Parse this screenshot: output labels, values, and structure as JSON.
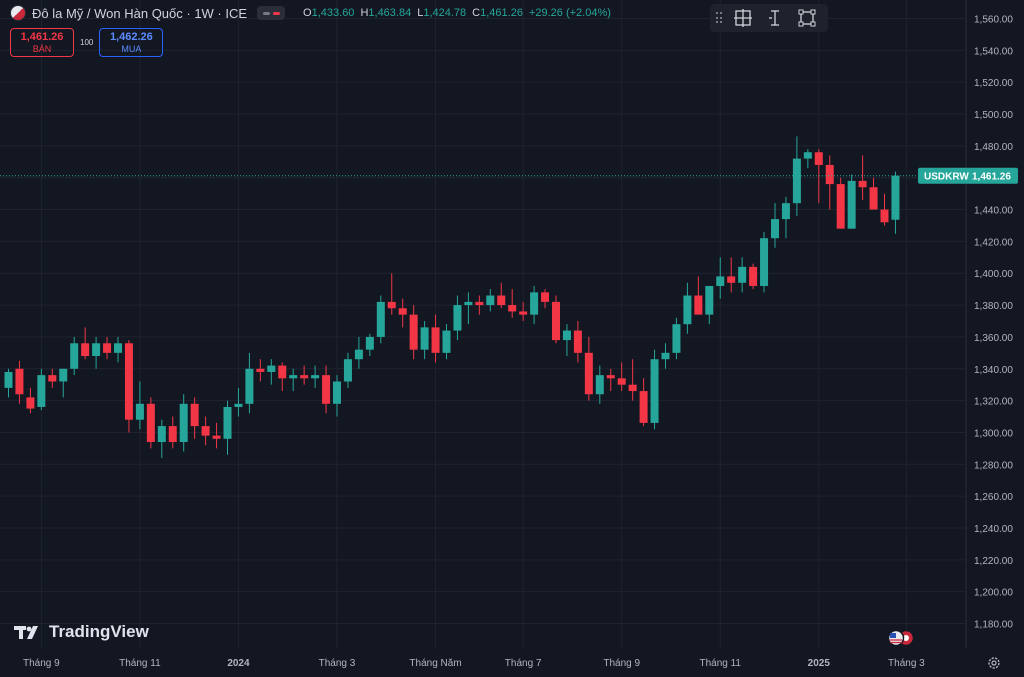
{
  "header": {
    "symbol_title": "Đô la Mỹ / Won Hàn Quốc · 1W · ICE",
    "ohlc": {
      "o_label": "O",
      "o_value": "1,433.60",
      "h_label": "H",
      "h_value": "1,463.84",
      "l_label": "L",
      "l_value": "1,424.78",
      "c_label": "C",
      "c_value": "1,461.26",
      "change": "+29.26 (+2.04%)"
    }
  },
  "trade": {
    "sell_price": "1,461.26",
    "sell_label": "BÁN",
    "spread": "100",
    "buy_price": "1,462.26",
    "buy_label": "MUA"
  },
  "logo_text": "TradingView",
  "colors": {
    "up": "#26a69a",
    "down": "#f23645",
    "background": "#131722",
    "grid": "#1f2330",
    "axis_text": "#b2b5be"
  },
  "icons": [
    "grip-icon",
    "crosshair-box-icon",
    "text-cursor-icon",
    "frame-icon",
    "settings-icon",
    "us-flag-icon",
    "kr-flag-icon"
  ],
  "chart_data": {
    "type": "candlestick",
    "symbol": "USDKRW",
    "last_price": 1461.26,
    "ylim": [
      1160,
      1570
    ],
    "yticks": [
      1180,
      1200,
      1220,
      1240,
      1260,
      1280,
      1300,
      1320,
      1340,
      1360,
      1380,
      1400,
      1420,
      1440,
      1460,
      1480,
      1500,
      1520,
      1540,
      1560
    ],
    "ytick_labels": [
      "1,180.00",
      "1,200.00",
      "1,220.00",
      "1,240.00",
      "1,260.00",
      "1,280.00",
      "1,300.00",
      "1,320.00",
      "1,340.00",
      "1,360.00",
      "1,380.00",
      "1,400.00",
      "1,420.00",
      "1,440.00",
      "1,460.00",
      "1,480.00",
      "1,500.00",
      "1,520.00",
      "1,540.00",
      "1,560.00"
    ],
    "xtick_labels": [
      {
        "i": 3,
        "label": "Tháng 9"
      },
      {
        "i": 12,
        "label": "Tháng 11"
      },
      {
        "i": 21,
        "label": "2024"
      },
      {
        "i": 30,
        "label": "Tháng 3"
      },
      {
        "i": 39,
        "label": "Tháng Năm"
      },
      {
        "i": 47,
        "label": "Tháng 7"
      },
      {
        "i": 56,
        "label": "Tháng 9"
      },
      {
        "i": 65,
        "label": "Tháng 11"
      },
      {
        "i": 74,
        "label": "2025"
      },
      {
        "i": 82,
        "label": "Tháng 3"
      }
    ],
    "candles": [
      [
        1328,
        1340,
        1322,
        1338
      ],
      [
        1340,
        1345,
        1318,
        1324
      ],
      [
        1322,
        1328,
        1312,
        1315
      ],
      [
        1316,
        1340,
        1314,
        1336
      ],
      [
        1336,
        1340,
        1328,
        1332
      ],
      [
        1332,
        1340,
        1322,
        1340
      ],
      [
        1340,
        1360,
        1336,
        1356
      ],
      [
        1356,
        1366,
        1346,
        1348
      ],
      [
        1348,
        1360,
        1340,
        1356
      ],
      [
        1356,
        1360,
        1346,
        1350
      ],
      [
        1350,
        1360,
        1344,
        1356
      ],
      [
        1356,
        1358,
        1300,
        1308
      ],
      [
        1308,
        1332,
        1302,
        1318
      ],
      [
        1318,
        1322,
        1290,
        1294
      ],
      [
        1294,
        1308,
        1284,
        1304
      ],
      [
        1304,
        1310,
        1290,
        1294
      ],
      [
        1294,
        1324,
        1288,
        1318
      ],
      [
        1318,
        1322,
        1296,
        1304
      ],
      [
        1304,
        1310,
        1292,
        1298
      ],
      [
        1298,
        1306,
        1290,
        1296
      ],
      [
        1296,
        1320,
        1286,
        1316
      ],
      [
        1316,
        1328,
        1310,
        1318
      ],
      [
        1318,
        1350,
        1312,
        1340
      ],
      [
        1340,
        1346,
        1332,
        1338
      ],
      [
        1338,
        1346,
        1330,
        1342
      ],
      [
        1342,
        1344,
        1326,
        1334
      ],
      [
        1334,
        1340,
        1326,
        1336
      ],
      [
        1336,
        1342,
        1330,
        1334
      ],
      [
        1334,
        1342,
        1328,
        1336
      ],
      [
        1336,
        1342,
        1312,
        1318
      ],
      [
        1318,
        1336,
        1310,
        1332
      ],
      [
        1332,
        1350,
        1328,
        1346
      ],
      [
        1346,
        1360,
        1340,
        1352
      ],
      [
        1352,
        1362,
        1348,
        1360
      ],
      [
        1360,
        1386,
        1356,
        1382
      ],
      [
        1382,
        1400,
        1374,
        1378
      ],
      [
        1378,
        1384,
        1366,
        1374
      ],
      [
        1374,
        1380,
        1346,
        1352
      ],
      [
        1352,
        1370,
        1346,
        1366
      ],
      [
        1366,
        1374,
        1344,
        1350
      ],
      [
        1350,
        1368,
        1346,
        1364
      ],
      [
        1364,
        1386,
        1358,
        1380
      ],
      [
        1380,
        1388,
        1368,
        1382
      ],
      [
        1382,
        1386,
        1374,
        1380
      ],
      [
        1380,
        1390,
        1376,
        1386
      ],
      [
        1386,
        1394,
        1378,
        1380
      ],
      [
        1380,
        1390,
        1372,
        1376
      ],
      [
        1376,
        1382,
        1370,
        1374
      ],
      [
        1374,
        1392,
        1368,
        1388
      ],
      [
        1388,
        1390,
        1378,
        1382
      ],
      [
        1382,
        1386,
        1356,
        1358
      ],
      [
        1358,
        1368,
        1348,
        1364
      ],
      [
        1364,
        1370,
        1344,
        1350
      ],
      [
        1350,
        1360,
        1320,
        1324
      ],
      [
        1324,
        1342,
        1318,
        1336
      ],
      [
        1336,
        1340,
        1326,
        1334
      ],
      [
        1334,
        1344,
        1326,
        1330
      ],
      [
        1330,
        1346,
        1320,
        1326
      ],
      [
        1326,
        1334,
        1304,
        1306
      ],
      [
        1306,
        1352,
        1302,
        1346
      ],
      [
        1346,
        1356,
        1340,
        1350
      ],
      [
        1350,
        1372,
        1346,
        1368
      ],
      [
        1368,
        1394,
        1362,
        1386
      ],
      [
        1386,
        1398,
        1376,
        1374
      ],
      [
        1374,
        1390,
        1368,
        1392
      ],
      [
        1392,
        1410,
        1384,
        1398
      ],
      [
        1398,
        1410,
        1388,
        1394
      ],
      [
        1394,
        1410,
        1388,
        1404
      ],
      [
        1404,
        1406,
        1390,
        1392
      ],
      [
        1392,
        1426,
        1388,
        1422
      ],
      [
        1422,
        1444,
        1416,
        1434
      ],
      [
        1434,
        1448,
        1422,
        1444
      ],
      [
        1444,
        1486,
        1436,
        1472
      ],
      [
        1472,
        1478,
        1466,
        1476
      ],
      [
        1476,
        1478,
        1444,
        1468
      ],
      [
        1468,
        1474,
        1440,
        1456
      ],
      [
        1456,
        1460,
        1428,
        1428
      ],
      [
        1428,
        1462,
        1428,
        1458
      ],
      [
        1458,
        1474,
        1446,
        1454
      ],
      [
        1454,
        1460,
        1440,
        1440
      ],
      [
        1440,
        1450,
        1430,
        1432
      ],
      [
        1433.6,
        1463.84,
        1424.78,
        1461.26
      ]
    ]
  }
}
